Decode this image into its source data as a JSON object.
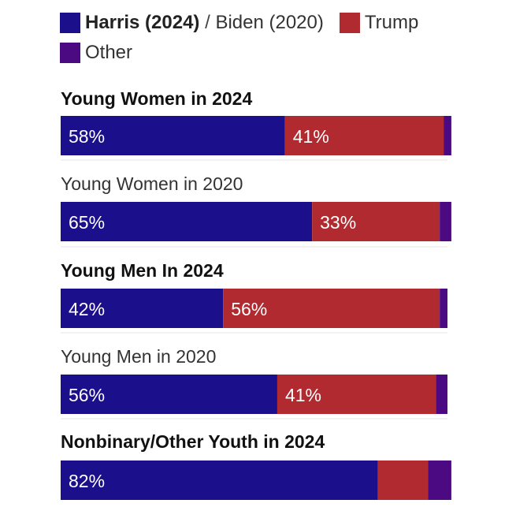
{
  "legend": {
    "harris_label": "Harris (2024)",
    "separator": "/",
    "biden_label": "Biden (2020)",
    "trump_label": "Trump",
    "other_label": "Other"
  },
  "colors": {
    "democrat": "#1b0f8c",
    "republican": "#b02a30",
    "other": "#4b0a82",
    "divider": "#e6e6e6"
  },
  "chart_data": {
    "type": "bar",
    "orientation": "horizontal",
    "stacked": true,
    "xlim": [
      0,
      100
    ],
    "grid": false,
    "legend_position": "top-left",
    "categories": [
      "Young Women in 2024",
      "Young Women in 2020",
      "Young Men In 2024",
      "Young Men in 2020",
      "Nonbinary/Other Youth in 2024"
    ],
    "category_bold": [
      true,
      false,
      true,
      false,
      true
    ],
    "series": [
      {
        "name": "Harris (2024) / Biden (2020)",
        "color_key": "democrat",
        "values": [
          58,
          65,
          42,
          56,
          82
        ],
        "labels": [
          "58%",
          "65%",
          "42%",
          "56%",
          "82%"
        ]
      },
      {
        "name": "Trump",
        "color_key": "republican",
        "values": [
          41,
          33,
          56,
          41,
          13
        ],
        "labels": [
          "41%",
          "33%",
          "56%",
          "41%",
          ""
        ]
      },
      {
        "name": "Other",
        "color_key": "other",
        "values": [
          2,
          3,
          2,
          3,
          6
        ],
        "labels": [
          "",
          "",
          "",
          "",
          ""
        ]
      }
    ]
  }
}
